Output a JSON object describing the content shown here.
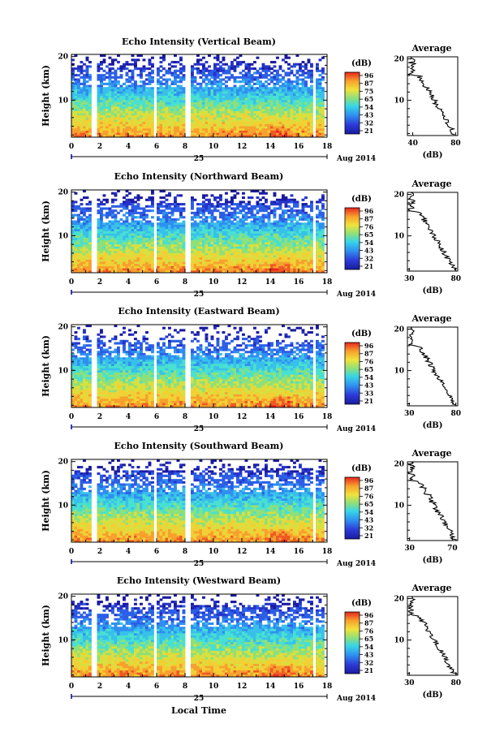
{
  "figure": {
    "xlabel": "Local Time",
    "date_label": "25",
    "month_label": "Aug 2014"
  },
  "chart_data": [
    {
      "type": "heatmap",
      "title": "Echo Intensity (Vertical Beam)",
      "ylabel": "Height (km)",
      "xlim": [
        0,
        18
      ],
      "ylim": [
        1.5,
        20.5
      ],
      "x_ticks": [
        0,
        2,
        4,
        6,
        8,
        10,
        12,
        14,
        16,
        18
      ],
      "y_ticks": [
        10,
        20
      ],
      "colorbar": {
        "unit": "(dB)",
        "ticks": [
          96,
          87,
          75,
          65,
          54,
          43,
          32,
          21
        ]
      },
      "average_profile": {
        "title": "Average",
        "xlabel": "(dB)",
        "xlim": [
          35,
          82
        ],
        "x_ticks": [
          40,
          80
        ],
        "y_ticks": [
          10,
          20
        ]
      }
    },
    {
      "type": "heatmap",
      "title": "Echo Intensity (Northward Beam)",
      "ylabel": "Height (km)",
      "xlim": [
        0,
        18
      ],
      "ylim": [
        1.5,
        20.5
      ],
      "x_ticks": [
        0,
        2,
        4,
        6,
        8,
        10,
        12,
        14,
        16,
        18
      ],
      "y_ticks": [
        10,
        20
      ],
      "colorbar": {
        "unit": "(dB)",
        "ticks": [
          96,
          87,
          76,
          65,
          54,
          43,
          32,
          21
        ]
      },
      "average_profile": {
        "title": "Average",
        "xlabel": "(dB)",
        "xlim": [
          28,
          82
        ],
        "x_ticks": [
          30,
          80
        ],
        "y_ticks": [
          10,
          20
        ]
      }
    },
    {
      "type": "heatmap",
      "title": "Echo Intensity (Eastward Beam)",
      "ylabel": "Height (km)",
      "xlim": [
        0,
        18
      ],
      "ylim": [
        1.5,
        20.5
      ],
      "x_ticks": [
        0,
        2,
        4,
        6,
        8,
        10,
        12,
        14,
        16,
        18
      ],
      "y_ticks": [
        10,
        20
      ],
      "colorbar": {
        "unit": "(dB)",
        "ticks": [
          96,
          87,
          76,
          65,
          54,
          43,
          33,
          21
        ]
      },
      "average_profile": {
        "title": "Average",
        "xlabel": "(dB)",
        "xlim": [
          28,
          82
        ],
        "x_ticks": [
          30,
          80
        ],
        "y_ticks": [
          10,
          20
        ]
      }
    },
    {
      "type": "heatmap",
      "title": "Echo Intensity (Southward Beam)",
      "ylabel": "Height (km)",
      "xlim": [
        0,
        18
      ],
      "ylim": [
        1.5,
        20.5
      ],
      "x_ticks": [
        0,
        2,
        4,
        6,
        8,
        10,
        12,
        14,
        16,
        18
      ],
      "y_ticks": [
        10,
        20
      ],
      "colorbar": {
        "unit": "(dB)",
        "ticks": [
          96,
          87,
          76,
          65,
          54,
          43,
          32,
          21
        ]
      },
      "average_profile": {
        "title": "Average",
        "xlabel": "(dB)",
        "xlim": [
          28,
          75
        ],
        "x_ticks": [
          30,
          70
        ],
        "y_ticks": [
          10,
          20
        ]
      }
    },
    {
      "type": "heatmap",
      "title": "Echo Intensity (Westward Beam)",
      "ylabel": "Height (km)",
      "xlim": [
        0,
        18
      ],
      "ylim": [
        1.5,
        20.5
      ],
      "x_ticks": [
        0,
        2,
        4,
        6,
        8,
        10,
        12,
        14,
        16,
        18
      ],
      "y_ticks": [
        10,
        20
      ],
      "colorbar": {
        "unit": "(dB)",
        "ticks": [
          96,
          87,
          76,
          65,
          54,
          43,
          32,
          21
        ]
      },
      "average_profile": {
        "title": "Average",
        "xlabel": "(dB)",
        "xlim": [
          28,
          82
        ],
        "x_ticks": [
          30,
          80
        ],
        "y_ticks": [
          10,
          20
        ]
      }
    }
  ]
}
